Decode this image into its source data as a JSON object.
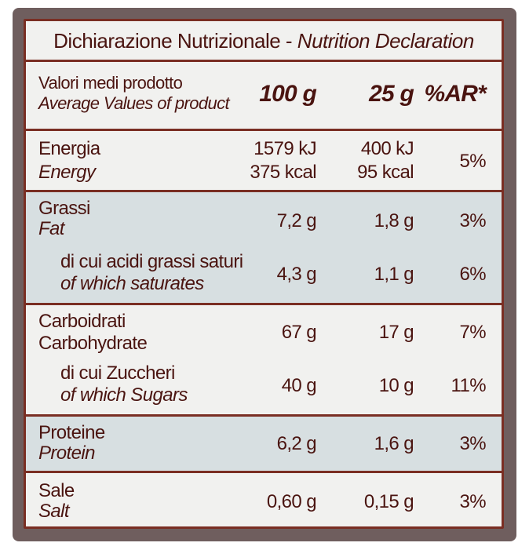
{
  "title": {
    "it": "Dichiarazione Nutrizionale -",
    "en": "Nutrition Declaration"
  },
  "header": {
    "label_it": "Valori medi prodotto",
    "label_en": "Average Values of product",
    "col_100": "100 g",
    "col_25": "25 g",
    "col_ar": "%AR*"
  },
  "rows": {
    "energy": {
      "label_it": "Energia",
      "label_en": "Energy",
      "v100_kj": "1579 kJ",
      "v100_kcal": "375 kcal",
      "v25_kj": "400 kJ",
      "v25_kcal": "95 kcal",
      "ar": "5%"
    },
    "fat": {
      "label_it": "Grassi",
      "label_en": "Fat",
      "v100": "7,2 g",
      "v25": "1,8 g",
      "ar": "3%",
      "sub_label_it": "di cui acidi grassi saturi",
      "sub_label_en": "of which saturates",
      "sub_v100": "4,3 g",
      "sub_v25": "1,1 g",
      "sub_ar": "6%"
    },
    "carbs": {
      "label_it": "Carboidrati",
      "label_en": "Carbohydrate",
      "v100": "67 g",
      "v25": "17 g",
      "ar": "7%",
      "sub_label_it": "di cui Zuccheri",
      "sub_label_en": "of which Sugars",
      "sub_v100": "40 g",
      "sub_v25": "10 g",
      "sub_ar": "11%"
    },
    "protein": {
      "label_it": "Proteine",
      "label_en": "Protein",
      "v100": "6,2 g",
      "v25": "1,6 g",
      "ar": "3%"
    },
    "salt": {
      "label_it": "Sale",
      "label_en": "Salt",
      "v100": "0,60 g",
      "v25": "0,15 g",
      "ar": "3%"
    }
  }
}
